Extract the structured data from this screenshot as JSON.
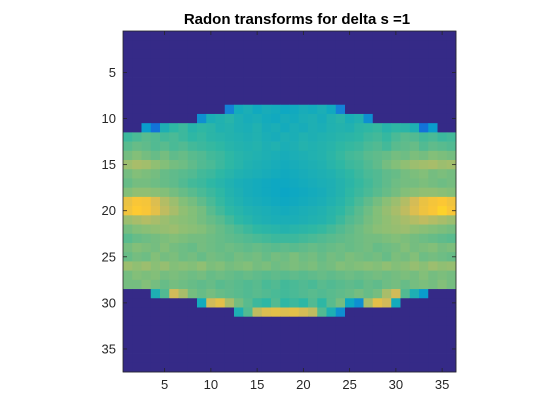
{
  "chart_data": {
    "type": "heatmap",
    "title": "Radon transforms for delta s =1",
    "xlabel": "",
    "ylabel": "",
    "xlim": [
      0.5,
      36.5
    ],
    "ylim": [
      0.5,
      37.5
    ],
    "y_direction": "reverse",
    "xticks": [
      5,
      10,
      15,
      20,
      25,
      30,
      35
    ],
    "yticks": [
      5,
      10,
      15,
      20,
      25,
      30,
      35
    ],
    "grid": false,
    "colormap": "parula",
    "colormap_stops": [
      "#352a87",
      "#0f5cdd",
      "#1481d6",
      "#06a4ca",
      "#2eb7a4",
      "#87bf77",
      "#d1bb59",
      "#fec832",
      "#f9fb0e"
    ],
    "columns": 36,
    "rows": 37,
    "values": [
      [
        0,
        0,
        0,
        0,
        0,
        0,
        0,
        0,
        0,
        0,
        0,
        0,
        0,
        0,
        0,
        0,
        0,
        0,
        0,
        0,
        0,
        0,
        0,
        0,
        0,
        0,
        0,
        0,
        0,
        0,
        0,
        0,
        0,
        0,
        0,
        0
      ],
      [
        0,
        0,
        0,
        0,
        0,
        0,
        0,
        0,
        0,
        0,
        0,
        0,
        0,
        0,
        0,
        0,
        0,
        0,
        0,
        0,
        0,
        0,
        0,
        0,
        0,
        0,
        0,
        0,
        0,
        0,
        0,
        0,
        0,
        0,
        0,
        0
      ],
      [
        0,
        0,
        0,
        0,
        0,
        0,
        0,
        0,
        0,
        0,
        0,
        0,
        0,
        0,
        0,
        0,
        0,
        0,
        0,
        0,
        0,
        0,
        0,
        0,
        0,
        0,
        0,
        0,
        0,
        0,
        0,
        0,
        0,
        0,
        0,
        0
      ],
      [
        0,
        0,
        0,
        0,
        0,
        0,
        0,
        0,
        0,
        0,
        0,
        0,
        0,
        0,
        0,
        0,
        0,
        0,
        0,
        0,
        0,
        0,
        0,
        0,
        0,
        0,
        0,
        0,
        0,
        0,
        0,
        0,
        0,
        0,
        0,
        0
      ],
      [
        0,
        0,
        0,
        0,
        0,
        0,
        0,
        0,
        0,
        0,
        0,
        0,
        0,
        0,
        0,
        0,
        0,
        0,
        0,
        0,
        0,
        0,
        0,
        0,
        0,
        0,
        0,
        0,
        0,
        0,
        0,
        0,
        0,
        0,
        0,
        0
      ],
      [
        0,
        0,
        0,
        0,
        0,
        0,
        0,
        0,
        0,
        0,
        0,
        0,
        0,
        0,
        0,
        0,
        0,
        0,
        0,
        0,
        0,
        0,
        0,
        0,
        0,
        0,
        0,
        0,
        0,
        0,
        0,
        0,
        0,
        0,
        0,
        0
      ],
      [
        0,
        0,
        0,
        0,
        0,
        0,
        0,
        0,
        0,
        0,
        0,
        0,
        0,
        0,
        0,
        0,
        0,
        0,
        0,
        0,
        0,
        0,
        0,
        0,
        0,
        0,
        0,
        0,
        0,
        0,
        0,
        0,
        0,
        0,
        0,
        0
      ],
      [
        0,
        0,
        0,
        0,
        0,
        0,
        0,
        0,
        0,
        0,
        0,
        0,
        0,
        0,
        0,
        0,
        0,
        0,
        0,
        0,
        0,
        0,
        0,
        0,
        0,
        0,
        0,
        0,
        0,
        0,
        0,
        0,
        0,
        0,
        0,
        0
      ],
      [
        0,
        0,
        0,
        0,
        0,
        0,
        0,
        0,
        0,
        0,
        0,
        0.25,
        0.42,
        0.44,
        0.41,
        0.43,
        0.42,
        0.4,
        0.41,
        0.43,
        0.42,
        0.44,
        0.41,
        0.25,
        0,
        0,
        0,
        0,
        0,
        0,
        0,
        0,
        0,
        0,
        0,
        0
      ],
      [
        0,
        0,
        0,
        0,
        0,
        0,
        0,
        0,
        0.3,
        0.44,
        0.46,
        0.48,
        0.45,
        0.43,
        0.44,
        0.42,
        0.41,
        0.43,
        0.42,
        0.44,
        0.45,
        0.43,
        0.46,
        0.48,
        0.44,
        0.46,
        0.3,
        0,
        0,
        0,
        0,
        0,
        0,
        0,
        0,
        0
      ],
      [
        0,
        0,
        0.35,
        0.2,
        0.45,
        0.5,
        0.52,
        0.48,
        0.5,
        0.49,
        0.46,
        0.47,
        0.45,
        0.44,
        0.46,
        0.43,
        0.44,
        0.42,
        0.44,
        0.43,
        0.45,
        0.44,
        0.46,
        0.47,
        0.46,
        0.49,
        0.5,
        0.51,
        0.48,
        0.5,
        0.49,
        0.45,
        0.2,
        0.35,
        0,
        0
      ],
      [
        0.52,
        0.54,
        0.56,
        0.55,
        0.53,
        0.54,
        0.52,
        0.5,
        0.51,
        0.49,
        0.48,
        0.47,
        0.46,
        0.45,
        0.46,
        0.44,
        0.43,
        0.45,
        0.44,
        0.46,
        0.45,
        0.46,
        0.47,
        0.48,
        0.49,
        0.5,
        0.52,
        0.53,
        0.51,
        0.54,
        0.56,
        0.55,
        0.53,
        0.54,
        0.52,
        0.53
      ],
      [
        0.56,
        0.58,
        0.57,
        0.55,
        0.56,
        0.54,
        0.55,
        0.53,
        0.52,
        0.51,
        0.5,
        0.48,
        0.47,
        0.46,
        0.47,
        0.45,
        0.46,
        0.44,
        0.45,
        0.47,
        0.46,
        0.47,
        0.48,
        0.5,
        0.51,
        0.52,
        0.54,
        0.55,
        0.53,
        0.56,
        0.57,
        0.58,
        0.55,
        0.57,
        0.56,
        0.55
      ],
      [
        0.6,
        0.62,
        0.6,
        0.58,
        0.6,
        0.57,
        0.58,
        0.56,
        0.55,
        0.53,
        0.52,
        0.5,
        0.48,
        0.47,
        0.46,
        0.45,
        0.44,
        0.43,
        0.44,
        0.45,
        0.46,
        0.47,
        0.49,
        0.51,
        0.53,
        0.54,
        0.56,
        0.57,
        0.58,
        0.6,
        0.59,
        0.61,
        0.6,
        0.62,
        0.61,
        0.6
      ],
      [
        0.66,
        0.68,
        0.67,
        0.64,
        0.62,
        0.6,
        0.59,
        0.57,
        0.55,
        0.54,
        0.52,
        0.5,
        0.48,
        0.46,
        0.45,
        0.44,
        0.43,
        0.42,
        0.43,
        0.44,
        0.45,
        0.46,
        0.48,
        0.5,
        0.52,
        0.53,
        0.55,
        0.57,
        0.6,
        0.62,
        0.64,
        0.66,
        0.67,
        0.68,
        0.66,
        0.67
      ],
      [
        0.6,
        0.62,
        0.61,
        0.6,
        0.58,
        0.57,
        0.56,
        0.55,
        0.53,
        0.52,
        0.5,
        0.48,
        0.46,
        0.45,
        0.44,
        0.43,
        0.42,
        0.41,
        0.42,
        0.43,
        0.44,
        0.45,
        0.46,
        0.48,
        0.5,
        0.52,
        0.54,
        0.55,
        0.57,
        0.58,
        0.6,
        0.61,
        0.62,
        0.6,
        0.61,
        0.6
      ],
      [
        0.58,
        0.6,
        0.6,
        0.59,
        0.58,
        0.57,
        0.55,
        0.53,
        0.52,
        0.5,
        0.48,
        0.46,
        0.44,
        0.43,
        0.42,
        0.41,
        0.4,
        0.4,
        0.41,
        0.42,
        0.43,
        0.44,
        0.45,
        0.47,
        0.49,
        0.51,
        0.53,
        0.55,
        0.57,
        0.59,
        0.6,
        0.6,
        0.61,
        0.6,
        0.59,
        0.6
      ],
      [
        0.62,
        0.64,
        0.64,
        0.63,
        0.62,
        0.6,
        0.58,
        0.56,
        0.54,
        0.52,
        0.5,
        0.47,
        0.45,
        0.43,
        0.42,
        0.41,
        0.4,
        0.39,
        0.4,
        0.41,
        0.42,
        0.43,
        0.45,
        0.47,
        0.5,
        0.52,
        0.54,
        0.56,
        0.58,
        0.6,
        0.62,
        0.63,
        0.64,
        0.64,
        0.63,
        0.62
      ],
      [
        0.82,
        0.86,
        0.85,
        0.78,
        0.7,
        0.66,
        0.62,
        0.6,
        0.57,
        0.54,
        0.51,
        0.48,
        0.46,
        0.44,
        0.43,
        0.42,
        0.41,
        0.4,
        0.41,
        0.42,
        0.43,
        0.44,
        0.46,
        0.48,
        0.51,
        0.54,
        0.57,
        0.6,
        0.63,
        0.66,
        0.7,
        0.76,
        0.82,
        0.85,
        0.87,
        0.84
      ],
      [
        0.84,
        0.88,
        0.86,
        0.8,
        0.72,
        0.68,
        0.64,
        0.62,
        0.6,
        0.56,
        0.53,
        0.5,
        0.48,
        0.46,
        0.45,
        0.44,
        0.43,
        0.42,
        0.43,
        0.44,
        0.45,
        0.46,
        0.48,
        0.5,
        0.53,
        0.56,
        0.59,
        0.62,
        0.65,
        0.68,
        0.72,
        0.78,
        0.83,
        0.86,
        0.9,
        0.86
      ],
      [
        0.66,
        0.68,
        0.7,
        0.68,
        0.66,
        0.64,
        0.63,
        0.62,
        0.6,
        0.58,
        0.56,
        0.53,
        0.5,
        0.48,
        0.46,
        0.45,
        0.44,
        0.44,
        0.44,
        0.45,
        0.46,
        0.47,
        0.49,
        0.52,
        0.55,
        0.57,
        0.6,
        0.62,
        0.64,
        0.66,
        0.68,
        0.7,
        0.72,
        0.7,
        0.68,
        0.66
      ],
      [
        0.6,
        0.62,
        0.63,
        0.64,
        0.65,
        0.66,
        0.64,
        0.63,
        0.62,
        0.6,
        0.58,
        0.56,
        0.54,
        0.52,
        0.5,
        0.49,
        0.48,
        0.47,
        0.48,
        0.49,
        0.5,
        0.51,
        0.53,
        0.55,
        0.57,
        0.59,
        0.61,
        0.63,
        0.64,
        0.65,
        0.66,
        0.64,
        0.63,
        0.62,
        0.61,
        0.6
      ],
      [
        0.56,
        0.58,
        0.59,
        0.6,
        0.61,
        0.62,
        0.61,
        0.6,
        0.6,
        0.59,
        0.58,
        0.57,
        0.56,
        0.55,
        0.54,
        0.53,
        0.52,
        0.52,
        0.52,
        0.53,
        0.54,
        0.55,
        0.56,
        0.57,
        0.58,
        0.59,
        0.6,
        0.6,
        0.61,
        0.62,
        0.61,
        0.6,
        0.59,
        0.58,
        0.57,
        0.56
      ],
      [
        0.6,
        0.62,
        0.61,
        0.6,
        0.62,
        0.6,
        0.59,
        0.58,
        0.6,
        0.59,
        0.58,
        0.59,
        0.58,
        0.57,
        0.58,
        0.57,
        0.56,
        0.57,
        0.56,
        0.57,
        0.58,
        0.57,
        0.58,
        0.59,
        0.58,
        0.59,
        0.6,
        0.58,
        0.59,
        0.6,
        0.62,
        0.6,
        0.61,
        0.62,
        0.6,
        0.61
      ],
      [
        0.58,
        0.6,
        0.59,
        0.62,
        0.6,
        0.61,
        0.59,
        0.6,
        0.58,
        0.6,
        0.59,
        0.58,
        0.6,
        0.59,
        0.6,
        0.58,
        0.6,
        0.59,
        0.61,
        0.59,
        0.6,
        0.58,
        0.6,
        0.59,
        0.61,
        0.6,
        0.59,
        0.6,
        0.58,
        0.61,
        0.6,
        0.62,
        0.59,
        0.6,
        0.59,
        0.58
      ],
      [
        0.66,
        0.64,
        0.66,
        0.63,
        0.65,
        0.62,
        0.63,
        0.62,
        0.64,
        0.61,
        0.62,
        0.6,
        0.61,
        0.62,
        0.6,
        0.61,
        0.59,
        0.6,
        0.61,
        0.6,
        0.61,
        0.59,
        0.6,
        0.62,
        0.61,
        0.62,
        0.63,
        0.62,
        0.64,
        0.62,
        0.63,
        0.65,
        0.63,
        0.66,
        0.64,
        0.65
      ],
      [
        0.6,
        0.62,
        0.61,
        0.62,
        0.6,
        0.61,
        0.6,
        0.59,
        0.6,
        0.58,
        0.59,
        0.58,
        0.57,
        0.58,
        0.57,
        0.56,
        0.57,
        0.56,
        0.57,
        0.56,
        0.57,
        0.58,
        0.57,
        0.58,
        0.59,
        0.58,
        0.59,
        0.6,
        0.59,
        0.6,
        0.61,
        0.6,
        0.62,
        0.6,
        0.61,
        0.6
      ],
      [
        0.6,
        0.6,
        0.62,
        0.6,
        0.58,
        0.6,
        0.59,
        0.58,
        0.57,
        0.58,
        0.56,
        0.57,
        0.56,
        0.55,
        0.56,
        0.54,
        0.55,
        0.53,
        0.54,
        0.55,
        0.54,
        0.56,
        0.55,
        0.56,
        0.57,
        0.56,
        0.58,
        0.57,
        0.59,
        0.6,
        0.58,
        0.6,
        0.61,
        0.6,
        0.62,
        0.6
      ],
      [
        0,
        0,
        0,
        0.45,
        0.55,
        0.75,
        0.68,
        0.6,
        0.58,
        0.6,
        0.58,
        0.57,
        0.56,
        0.55,
        0.56,
        0.55,
        0.54,
        0.53,
        0.54,
        0.55,
        0.56,
        0.55,
        0.56,
        0.57,
        0.58,
        0.6,
        0.58,
        0.6,
        0.68,
        0.75,
        0.55,
        0.45,
        0.35,
        0,
        0,
        0
      ],
      [
        0,
        0,
        0,
        0,
        0,
        0,
        0,
        0,
        0.42,
        0.75,
        0.8,
        0.68,
        0.6,
        0.56,
        0.52,
        0.5,
        0.55,
        0.5,
        0.52,
        0.5,
        0.55,
        0.5,
        0.56,
        0.6,
        0.4,
        0.3,
        0.68,
        0.8,
        0.75,
        0.42,
        0,
        0,
        0,
        0,
        0,
        0
      ],
      [
        0,
        0,
        0,
        0,
        0,
        0,
        0,
        0,
        0,
        0,
        0,
        0,
        0.45,
        0.55,
        0.72,
        0.78,
        0.8,
        0.78,
        0.8,
        0.76,
        0.72,
        0.55,
        0.45,
        0.3,
        0,
        0,
        0,
        0,
        0,
        0,
        0,
        0,
        0,
        0,
        0,
        0
      ],
      [
        0,
        0,
        0,
        0,
        0,
        0,
        0,
        0,
        0,
        0,
        0,
        0,
        0,
        0,
        0,
        0,
        0,
        0,
        0,
        0,
        0,
        0,
        0,
        0,
        0,
        0,
        0,
        0,
        0,
        0,
        0,
        0,
        0,
        0,
        0,
        0
      ],
      [
        0,
        0,
        0,
        0,
        0,
        0,
        0,
        0,
        0,
        0,
        0,
        0,
        0,
        0,
        0,
        0,
        0,
        0,
        0,
        0,
        0,
        0,
        0,
        0,
        0,
        0,
        0,
        0,
        0,
        0,
        0,
        0,
        0,
        0,
        0,
        0
      ],
      [
        0,
        0,
        0,
        0,
        0,
        0,
        0,
        0,
        0,
        0,
        0,
        0,
        0,
        0,
        0,
        0,
        0,
        0,
        0,
        0,
        0,
        0,
        0,
        0,
        0,
        0,
        0,
        0,
        0,
        0,
        0,
        0,
        0,
        0,
        0,
        0
      ],
      [
        0,
        0,
        0,
        0,
        0,
        0,
        0,
        0,
        0,
        0,
        0,
        0,
        0,
        0,
        0,
        0,
        0,
        0,
        0,
        0,
        0,
        0,
        0,
        0,
        0,
        0,
        0,
        0,
        0,
        0,
        0,
        0,
        0,
        0,
        0,
        0
      ],
      [
        0,
        0,
        0,
        0,
        0,
        0,
        0,
        0,
        0,
        0,
        0,
        0,
        0,
        0,
        0,
        0,
        0,
        0,
        0,
        0,
        0,
        0,
        0,
        0,
        0,
        0,
        0,
        0,
        0,
        0,
        0,
        0,
        0,
        0,
        0,
        0
      ],
      [
        0,
        0,
        0,
        0,
        0,
        0,
        0,
        0,
        0,
        0,
        0,
        0,
        0,
        0,
        0,
        0,
        0,
        0,
        0,
        0,
        0,
        0,
        0,
        0,
        0,
        0,
        0,
        0,
        0,
        0,
        0,
        0,
        0,
        0,
        0,
        0
      ]
    ]
  }
}
